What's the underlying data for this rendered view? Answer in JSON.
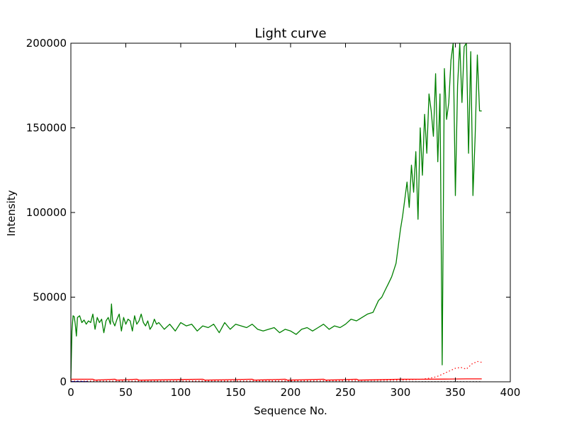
{
  "chart_data": {
    "type": "line",
    "title": "Light curve",
    "xlabel": "Sequence No.",
    "ylabel": "Intensity",
    "xlim": [
      0,
      400
    ],
    "ylim": [
      0,
      200000
    ],
    "xticks": [
      0,
      50,
      100,
      150,
      200,
      250,
      300,
      350,
      400
    ],
    "yticks": [
      0,
      50000,
      100000,
      150000,
      200000
    ],
    "xtick_labels": [
      "0",
      "50",
      "100",
      "150",
      "200",
      "250",
      "300",
      "350",
      "400"
    ],
    "ytick_labels": [
      "0",
      "50000",
      "100000",
      "150000",
      "200000"
    ],
    "grid": false,
    "series": [
      {
        "color": "#008000",
        "style": "solid",
        "x": [
          0,
          1,
          2,
          3,
          4,
          5,
          6,
          8,
          10,
          12,
          14,
          16,
          18,
          20,
          22,
          24,
          26,
          28,
          30,
          32,
          34,
          36,
          37,
          38,
          40,
          42,
          44,
          46,
          48,
          50,
          52,
          54,
          56,
          58,
          60,
          62,
          64,
          66,
          68,
          70,
          72,
          74,
          76,
          78,
          80,
          85,
          90,
          95,
          100,
          105,
          110,
          115,
          120,
          125,
          130,
          135,
          140,
          145,
          150,
          155,
          160,
          165,
          170,
          175,
          180,
          185,
          190,
          195,
          200,
          205,
          210,
          215,
          220,
          225,
          230,
          235,
          240,
          245,
          250,
          255,
          260,
          265,
          270,
          275,
          280,
          283,
          286,
          289,
          292,
          294,
          296,
          298,
          300,
          302,
          304,
          306,
          308,
          310,
          312,
          314,
          316,
          318,
          320,
          322,
          324,
          326,
          328,
          330,
          332,
          334,
          336,
          338,
          340,
          342,
          344,
          346,
          348,
          350,
          352,
          354,
          356,
          358,
          360,
          362,
          364,
          366,
          368,
          370,
          372,
          374
        ],
        "values": [
          2000,
          30000,
          39000,
          38500,
          34000,
          27000,
          38000,
          39000,
          35000,
          36500,
          34000,
          36000,
          35000,
          40000,
          31000,
          38000,
          35000,
          37000,
          29000,
          36000,
          38000,
          34000,
          46000,
          36000,
          33000,
          37000,
          40000,
          30000,
          38000,
          34000,
          37000,
          36000,
          30000,
          39000,
          34000,
          36000,
          40000,
          35000,
          33000,
          36000,
          31000,
          33000,
          37000,
          34000,
          35000,
          31000,
          34000,
          30000,
          35000,
          33000,
          34000,
          30000,
          33000,
          32000,
          34000,
          29000,
          35000,
          31000,
          34000,
          33000,
          32000,
          34000,
          31000,
          30000,
          31000,
          32000,
          29000,
          31000,
          30000,
          28000,
          31000,
          32000,
          30000,
          32000,
          34000,
          31000,
          33000,
          32000,
          34000,
          37000,
          36000,
          38000,
          40000,
          41000,
          48000,
          50000,
          54000,
          58000,
          62000,
          66000,
          70000,
          80000,
          90000,
          98000,
          108000,
          118000,
          103000,
          128000,
          112000,
          136000,
          96000,
          150000,
          122000,
          158000,
          135000,
          170000,
          160000,
          145000,
          182000,
          130000,
          170000,
          10000,
          185000,
          155000,
          165000,
          190000,
          200000,
          110000,
          175000,
          200000,
          165000,
          198000,
          200000,
          135000,
          195000,
          110000,
          145000,
          193000,
          160000,
          160000
        ]
      },
      {
        "color": "#ff0000",
        "style": "solid",
        "x": [
          0,
          20,
          22,
          40,
          42,
          60,
          62,
          120,
          122,
          165,
          167,
          195,
          197,
          230,
          232,
          260,
          262,
          300,
          320,
          340,
          360,
          374
        ],
        "values": [
          1500,
          1500,
          1000,
          1500,
          1000,
          1500,
          1000,
          1500,
          1000,
          1500,
          1000,
          1500,
          1000,
          1500,
          1000,
          1500,
          1000,
          1500,
          1500,
          1600,
          1700,
          1700
        ]
      },
      {
        "color": "#ff0000",
        "style": "dotted",
        "x": [
          0,
          100,
          200,
          250,
          300,
          320,
          330,
          335,
          340,
          345,
          350,
          355,
          360,
          365,
          370,
          374
        ],
        "values": [
          500,
          500,
          600,
          700,
          1000,
          1500,
          2500,
          3500,
          5000,
          6500,
          8000,
          8500,
          7500,
          10500,
          12000,
          11500
        ]
      },
      {
        "color": "#0000ff",
        "style": "solid",
        "x": [
          0,
          2,
          4,
          6,
          8,
          10,
          12,
          14,
          16
        ],
        "values": [
          0,
          200,
          0,
          300,
          0,
          200,
          0,
          150,
          0
        ]
      },
      {
        "color": "#000000",
        "style": "dotted",
        "x": [
          0,
          100,
          200,
          300,
          374
        ],
        "values": [
          100,
          100,
          100,
          100,
          100
        ]
      }
    ]
  }
}
